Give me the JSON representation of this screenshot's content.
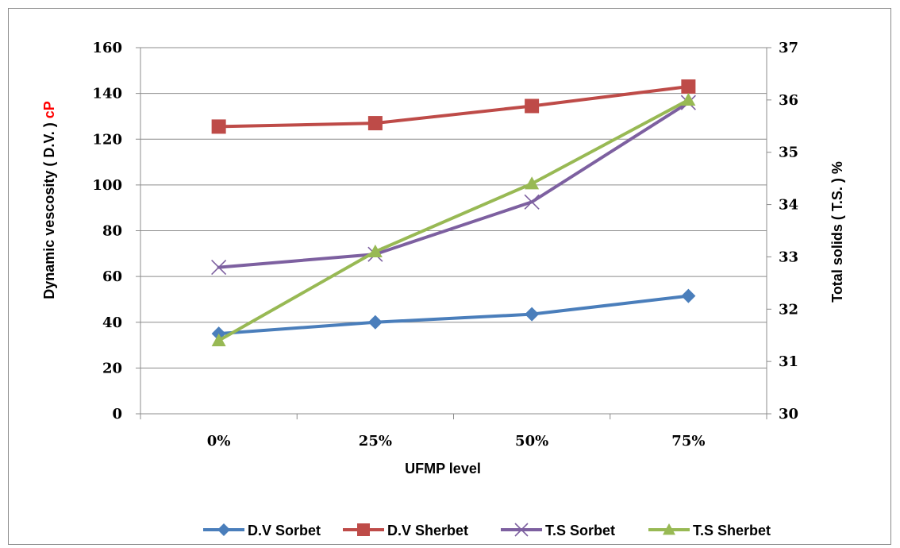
{
  "chart_data": {
    "type": "line",
    "categories": [
      "0%",
      "25%",
      "50%",
      "75%"
    ],
    "xlabel": "UFMP level",
    "ylabel_main": "Dynamic vescosity ( D.V. ) ",
    "ylabel_unit": "cP",
    "ylabel_unit_color": "#ff0000",
    "y2label": "Total solids ( T.S. ) %",
    "ylim": [
      0,
      160
    ],
    "y_ticks": [
      0,
      20,
      40,
      60,
      80,
      100,
      120,
      140,
      160
    ],
    "y2lim": [
      30,
      37
    ],
    "y2_ticks": [
      30,
      31,
      32,
      33,
      34,
      35,
      36,
      37
    ],
    "grid": true,
    "legend_position": "bottom",
    "series": [
      {
        "name": "D.V Sorbet",
        "axis": "left",
        "color": "#4a7ebb",
        "marker": "diamond",
        "values": [
          35,
          40,
          43.5,
          51.5
        ]
      },
      {
        "name": "D.V Sherbet",
        "axis": "left",
        "color": "#be4b48",
        "marker": "square",
        "values": [
          125.5,
          127,
          134.5,
          143
        ]
      },
      {
        "name": "T.S Sorbet",
        "axis": "right",
        "color": "#7d60a0",
        "marker": "x",
        "values": [
          32.8,
          33.05,
          34.05,
          35.95
        ]
      },
      {
        "name": "T.S Sherbet",
        "axis": "right",
        "color": "#98b954",
        "marker": "triangle",
        "values": [
          31.4,
          33.1,
          34.4,
          36
        ]
      }
    ]
  }
}
